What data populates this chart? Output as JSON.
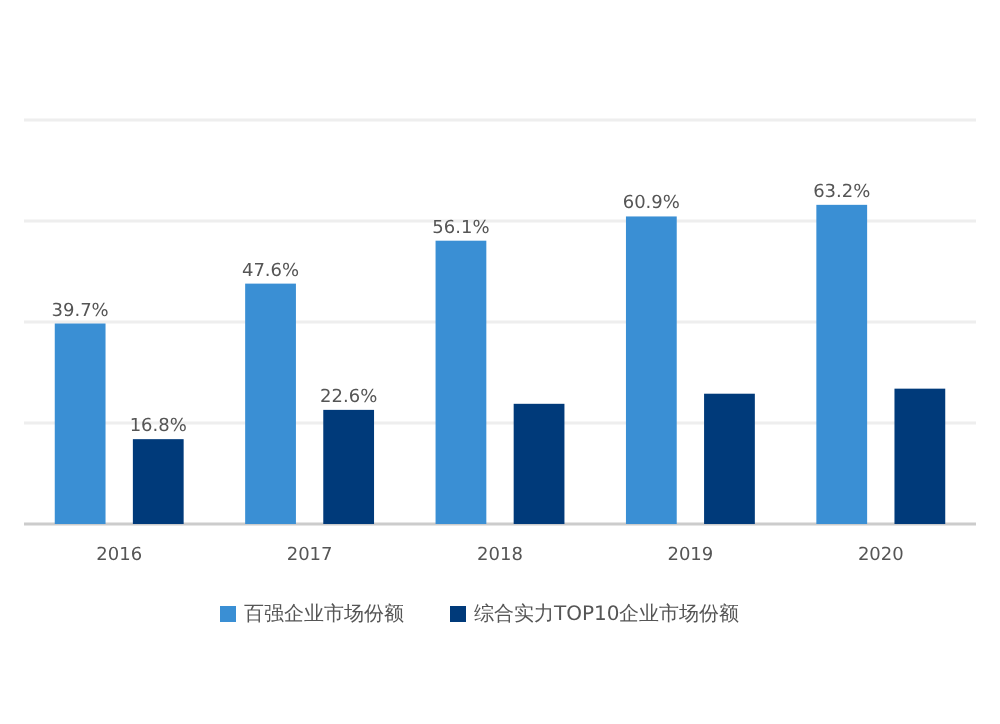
{
  "chart_data": {
    "type": "bar",
    "categories": [
      "2016",
      "2017",
      "2018",
      "2019",
      "2020"
    ],
    "series": [
      {
        "name": "百强企业市场份额",
        "color": "#3a8fd4",
        "values": [
          39.7,
          47.6,
          56.1,
          60.9,
          63.2
        ],
        "value_labels": [
          "39.7%",
          "47.6%",
          "56.1%",
          "60.9%",
          "63.2%"
        ]
      },
      {
        "name": "综合实力TOP10企业市场份额",
        "color": "#003a7a",
        "values": [
          16.8,
          22.6,
          23.8,
          25.8,
          26.8
        ],
        "value_labels": [
          "16.8%",
          "22.6%",
          null,
          null,
          null
        ]
      }
    ],
    "ylim": [
      0,
      80
    ],
    "yticks": [
      {
        "value": 0,
        "label": null
      },
      {
        "value": 20,
        "label": null
      },
      {
        "value": 40,
        "label": null
      },
      {
        "value": 60,
        "label": null
      },
      {
        "value": 80,
        "label": null
      }
    ],
    "tick_labels": "x",
    "grid": "y",
    "legend": "bottom"
  }
}
